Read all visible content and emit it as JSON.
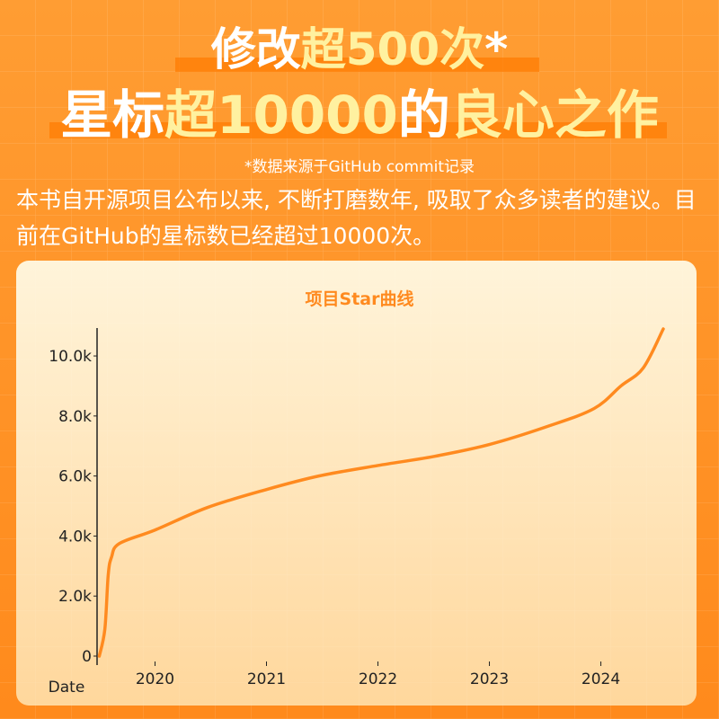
{
  "header": {
    "line1": [
      {
        "text": "修改",
        "highlight": false
      },
      {
        "text": "超500次",
        "highlight": true
      },
      {
        "text": "*",
        "highlight": false
      }
    ],
    "line2": [
      {
        "text": "星标",
        "highlight": false
      },
      {
        "text": "超10000",
        "highlight": true
      },
      {
        "text": "的",
        "highlight": false
      },
      {
        "text": "良心之作",
        "highlight": true
      }
    ],
    "note": "*数据来源于GitHub commit记录",
    "paragraph": "本书自开源项目公布以来, 不断打磨数年, 吸取了众多读者的建议。目前在GitHub的星标数已经超过10000次。"
  },
  "chart_data": {
    "type": "line",
    "title": "项目Star曲线",
    "x_label": "Date",
    "x": [
      2019.5,
      2019.55,
      2019.58,
      2019.61,
      2019.68,
      2020.0,
      2020.47,
      2021.0,
      2021.47,
      2022.0,
      2022.5,
      2023.0,
      2023.52,
      2023.94,
      2024.18,
      2024.38,
      2024.56
    ],
    "series": [
      {
        "name": "Star",
        "color": "#ff8a1f",
        "values": [
          0,
          900,
          2700,
          3300,
          3750,
          4200,
          4950,
          5550,
          6000,
          6350,
          6650,
          7050,
          7650,
          8250,
          9000,
          9600,
          10900
        ]
      }
    ],
    "xlim": [
      2019.48,
      2024.56
    ],
    "xticks": [
      2020,
      2021,
      2022,
      2023,
      2024
    ],
    "ylim": [
      0,
      10900
    ],
    "yticks": [
      0,
      {
        "value": 2000,
        "label": "2.0k"
      },
      {
        "value": 4000,
        "label": "4.0k"
      },
      {
        "value": 6000,
        "label": "6.0k"
      },
      {
        "value": 8000,
        "label": "8.0k"
      },
      {
        "value": 10000,
        "label": "10.0k"
      }
    ],
    "grid": false
  }
}
